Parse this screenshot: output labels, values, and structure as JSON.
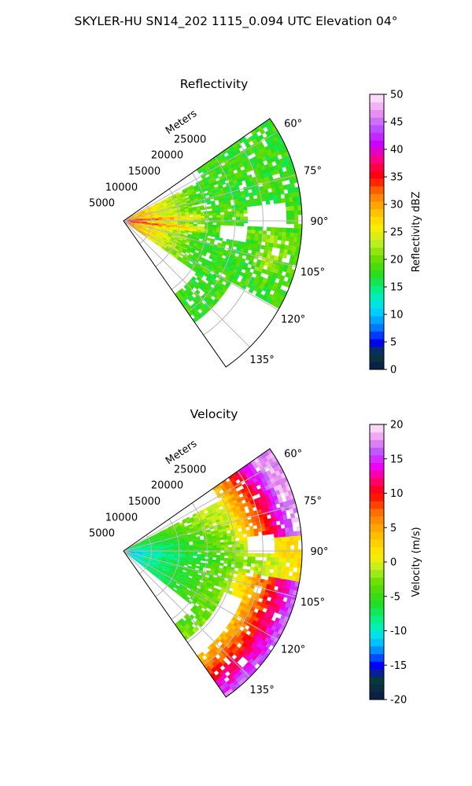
{
  "figure": {
    "title": "SKYLER-HU  SN14_202  1115_0.094 UTC Elevation 04°"
  },
  "chart_data": [
    {
      "type": "heatmap",
      "projection": "polar-sector",
      "title": "Reflectivity",
      "radial_label": "Meters",
      "range_ticks": [
        5000,
        10000,
        15000,
        20000,
        25000
      ],
      "range_max": 32000,
      "azimuth_range_deg": [
        55,
        145
      ],
      "azimuth_ticks": [
        "60°",
        "75°",
        "90°",
        "105°",
        "120°",
        "135°"
      ],
      "azimuth_tick_values": [
        60,
        75,
        90,
        105,
        120,
        135
      ],
      "colorbar": {
        "label": "Reflectivity dBZ",
        "min": 0,
        "max": 50,
        "ticks": [
          0,
          5,
          10,
          15,
          20,
          25,
          30,
          35,
          40,
          45,
          50
        ],
        "color_stops": [
          [
            0,
            "#0a1a4a"
          ],
          [
            3,
            "#0a3c3c"
          ],
          [
            5,
            "#0000ff"
          ],
          [
            8,
            "#0088ff"
          ],
          [
            11,
            "#00ddff"
          ],
          [
            14,
            "#00f5a0"
          ],
          [
            17,
            "#22dd22"
          ],
          [
            20,
            "#66dd00"
          ],
          [
            23,
            "#bbee22"
          ],
          [
            26,
            "#ffee00"
          ],
          [
            29,
            "#ffbb00"
          ],
          [
            32,
            "#ff7700"
          ],
          [
            35,
            "#ff0000"
          ],
          [
            38,
            "#ff0077"
          ],
          [
            41,
            "#cc00ff"
          ],
          [
            44,
            "#bb55ff"
          ],
          [
            47,
            "#ee99ee"
          ],
          [
            50,
            "#ffeeff"
          ]
        ]
      },
      "description_values": {
        "near_range_max_dbz": 36,
        "typical_echo_dbz": 20
      }
    },
    {
      "type": "heatmap",
      "projection": "polar-sector",
      "title": "Velocity",
      "radial_label": "Meters",
      "range_ticks": [
        5000,
        10000,
        15000,
        20000,
        25000
      ],
      "range_max": 32000,
      "azimuth_range_deg": [
        55,
        145
      ],
      "azimuth_ticks": [
        "60°",
        "75°",
        "90°",
        "105°",
        "120°",
        "135°"
      ],
      "azimuth_tick_values": [
        60,
        75,
        90,
        105,
        120,
        135
      ],
      "colorbar": {
        "label": "Velocity (m/s)",
        "min": -20,
        "max": 20,
        "ticks": [
          -20,
          -15,
          -10,
          -5,
          0,
          5,
          10,
          15,
          20
        ],
        "color_stops": [
          [
            -20,
            "#0a1a4a"
          ],
          [
            -17,
            "#0a3c3c"
          ],
          [
            -15,
            "#0000ff"
          ],
          [
            -13,
            "#0088ff"
          ],
          [
            -11,
            "#00ddff"
          ],
          [
            -9,
            "#00f5a0"
          ],
          [
            -6,
            "#22dd22"
          ],
          [
            -3,
            "#66dd00"
          ],
          [
            -1,
            "#bbee22"
          ],
          [
            1,
            "#ffee00"
          ],
          [
            4,
            "#ffbb00"
          ],
          [
            7,
            "#ff7700"
          ],
          [
            10,
            "#ff0000"
          ],
          [
            12,
            "#ff0077"
          ],
          [
            14,
            "#ee00ff"
          ],
          [
            16,
            "#bb55ff"
          ],
          [
            18,
            "#ee99ee"
          ],
          [
            20,
            "#ffeeff"
          ]
        ]
      },
      "description_values": {
        "near_range_velocity": -11,
        "far_range_max_velocity": 15
      }
    }
  ]
}
